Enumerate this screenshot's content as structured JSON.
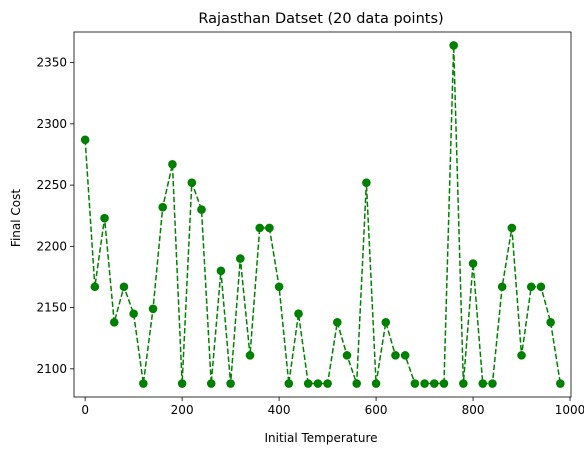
{
  "chart_data": {
    "type": "line",
    "title": "Rajasthan Datset (20 data points)",
    "xlabel": "Initial Temperature",
    "ylabel": "Final Cost",
    "xlim": [
      -23,
      1002
    ],
    "ylim": [
      2077,
      2375
    ],
    "xticks": [
      0,
      200,
      400,
      600,
      800,
      1000
    ],
    "xtick_labels": [
      "0",
      "200",
      "400",
      "600",
      "800",
      "1000"
    ],
    "yticks": [
      2100,
      2150,
      2200,
      2250,
      2300,
      2350
    ],
    "ytick_labels": [
      "2100",
      "2150",
      "2200",
      "2250",
      "2300",
      "2350"
    ],
    "grid": false,
    "series": [
      {
        "color": "#008000",
        "line_style": "dashed",
        "marker": "circle",
        "x": [
          0,
          20,
          40,
          60,
          80,
          100,
          120,
          140,
          160,
          180,
          200,
          220,
          240,
          260,
          280,
          300,
          320,
          340,
          360,
          380,
          400,
          420,
          440,
          460,
          480,
          500,
          520,
          540,
          560,
          580,
          600,
          620,
          640,
          660,
          680,
          700,
          720,
          740,
          760,
          780,
          800,
          820,
          840,
          860,
          880,
          900,
          920,
          940,
          960,
          980
        ],
        "y": [
          2287,
          2167,
          2223,
          2138,
          2167,
          2145,
          2088,
          2149,
          2232,
          2267,
          2088,
          2252,
          2230,
          2088,
          2180,
          2088,
          2190,
          2111,
          2215,
          2215,
          2167,
          2088,
          2145,
          2088,
          2088,
          2088,
          2138,
          2111,
          2088,
          2252,
          2088,
          2138,
          2111,
          2111,
          2088,
          2088,
          2088,
          2088,
          2364,
          2088,
          2186,
          2088,
          2088,
          2167,
          2215,
          2111,
          2167,
          2167,
          2138,
          2088
        ]
      }
    ]
  }
}
